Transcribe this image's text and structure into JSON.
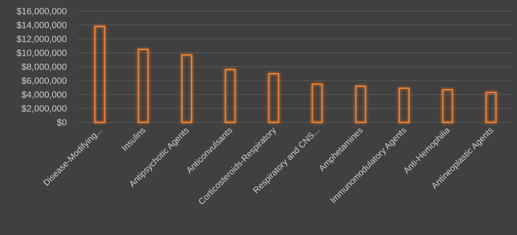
{
  "chart_data": {
    "type": "bar",
    "categories": [
      "Disease-Modifying...",
      "Insulins",
      "Antipsychotic Agents",
      "Anticonvulsants",
      "Corticosteroids-Respiratory",
      "Respiratory and CNS...",
      "Amphetamines",
      "Immunomodulatory Agents",
      "Anti-Hemophilia",
      "Antineoplastic Agents"
    ],
    "values": [
      13800000,
      10500000,
      9700000,
      7600000,
      7000000,
      5500000,
      5200000,
      4900000,
      4700000,
      4300000
    ],
    "ylim": [
      0,
      16000000
    ],
    "yticks": [
      0,
      2000000,
      4000000,
      6000000,
      8000000,
      10000000,
      12000000,
      14000000,
      16000000
    ],
    "ytick_labels": [
      "$0",
      "$2,000,000",
      "$4,000,000",
      "$6,000,000",
      "$8,000,000",
      "$10,000,000",
      "$12,000,000",
      "$14,000,000",
      "$16,000,000"
    ],
    "title": "",
    "xlabel": "",
    "ylabel": "",
    "grid": true,
    "colors": {
      "background": "#404040",
      "gridline": "#5a5a5a",
      "bar_outline": "#ed7d31",
      "text": "#d0d0d0"
    }
  }
}
